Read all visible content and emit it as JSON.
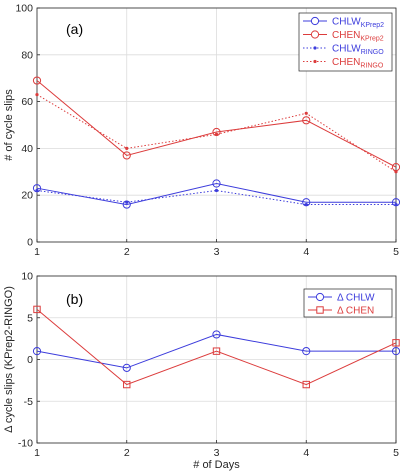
{
  "chart_data": [
    {
      "type": "line",
      "panel_label": "(a)",
      "x": [
        1,
        2,
        3,
        4,
        5
      ],
      "ylabel": "# of cycle slips",
      "xlabel": "",
      "xlim": [
        1,
        5
      ],
      "ylim": [
        0,
        100
      ],
      "xticks": [
        "1",
        "2",
        "3",
        "4",
        "5"
      ],
      "yticks": [
        "0",
        "20",
        "40",
        "60",
        "80",
        "100"
      ],
      "grid": true,
      "legend": "top-right",
      "series": [
        {
          "name": "CHLW",
          "name_sub": "KPrep2",
          "color": "#3c3cdc",
          "style": "solid",
          "marker": "circle",
          "values": [
            23,
            16,
            25,
            17,
            17
          ]
        },
        {
          "name": "CHEN",
          "name_sub": "KPrep2",
          "color": "#dc3c3c",
          "style": "solid",
          "marker": "circle",
          "values": [
            69,
            37,
            47,
            52,
            32
          ]
        },
        {
          "name": "CHLW",
          "name_sub": "RINGO",
          "color": "#3c3cdc",
          "style": "dotted",
          "marker": "dot",
          "values": [
            22,
            17,
            22,
            16,
            16
          ]
        },
        {
          "name": "CHEN",
          "name_sub": "RINGO",
          "color": "#dc3c3c",
          "style": "dotted",
          "marker": "dot",
          "values": [
            63,
            40,
            46,
            55,
            30
          ]
        }
      ]
    },
    {
      "type": "line",
      "panel_label": "(b)",
      "x": [
        1,
        2,
        3,
        4,
        5
      ],
      "xlabel": "# of Days",
      "ylabel": "Δ  cycle slips  (KPrep2-RINGO)",
      "xlim": [
        1,
        5
      ],
      "ylim": [
        -10,
        10
      ],
      "xticks": [
        "1",
        "2",
        "3",
        "4",
        "5"
      ],
      "yticks": [
        "-10",
        "-5",
        "0",
        "5",
        "10"
      ],
      "grid": true,
      "legend": "top-right",
      "series": [
        {
          "name": "Δ  CHLW",
          "color": "#3c3cdc",
          "style": "solid",
          "marker": "circle",
          "values": [
            1,
            -1,
            3,
            1,
            1
          ]
        },
        {
          "name": "Δ  CHEN",
          "color": "#dc3c3c",
          "style": "solid",
          "marker": "square",
          "values": [
            6,
            -3,
            1,
            -3,
            2
          ]
        }
      ]
    }
  ]
}
